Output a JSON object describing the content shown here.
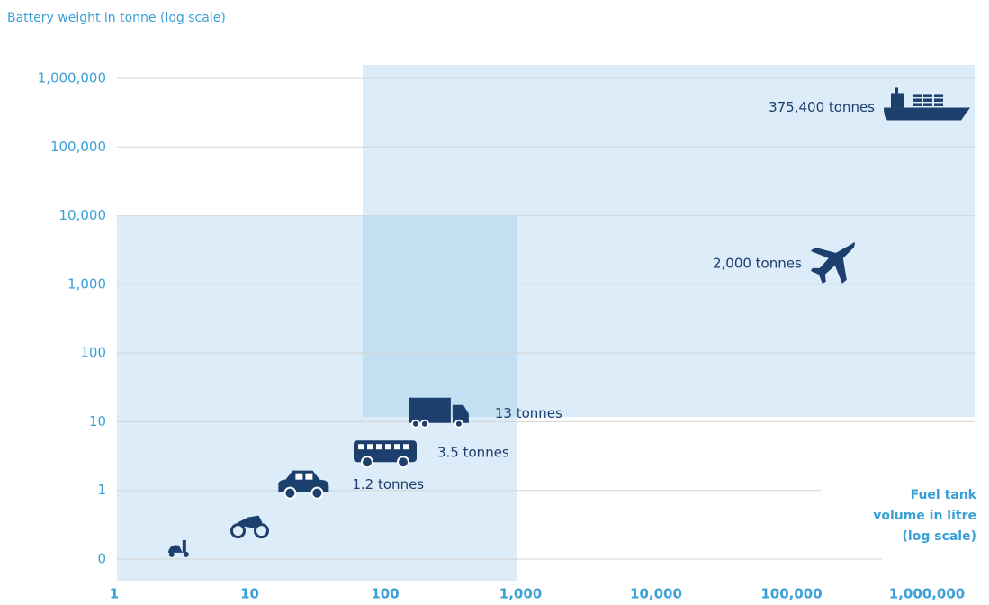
{
  "chart_data": {
    "type": "scatter",
    "title": "Battery weight in tonne (log scale)",
    "x_label": [
      "Fuel tank",
      "volume in litre",
      "(log scale)"
    ],
    "xscale": "log",
    "yscale": "log",
    "xlim": [
      1,
      1000000
    ],
    "ylim": [
      0.1,
      1000000
    ],
    "xticks": [
      1,
      10,
      100,
      {
        "value": 1000,
        "label": "1,000"
      },
      {
        "value": 10000,
        "label": "10,000"
      },
      {
        "value": 100000,
        "label": "100,000"
      },
      {
        "value": 1000000,
        "label": "1,000,000"
      }
    ],
    "yticks": [
      {
        "value": 0.1,
        "label": "0"
      },
      1,
      10,
      100,
      {
        "value": 1000,
        "label": "1,000"
      },
      {
        "value": 10000,
        "label": "10,000"
      },
      {
        "value": 100000,
        "label": "100,000"
      },
      {
        "value": 1000000,
        "label": "1,000,000"
      }
    ],
    "grid": true,
    "color": "#1d3f6e",
    "x": [
      3,
      10,
      25,
      100,
      250,
      200000,
      1000000
    ],
    "values": [
      0.14,
      0.3,
      1.2,
      3.5,
      13,
      2000,
      375400
    ],
    "value_labels": [
      null,
      null,
      "1.2 tonnes",
      "3.5 tonnes",
      "13 tonnes",
      "2,000 tonnes",
      "375,400 tonnes"
    ]
  }
}
